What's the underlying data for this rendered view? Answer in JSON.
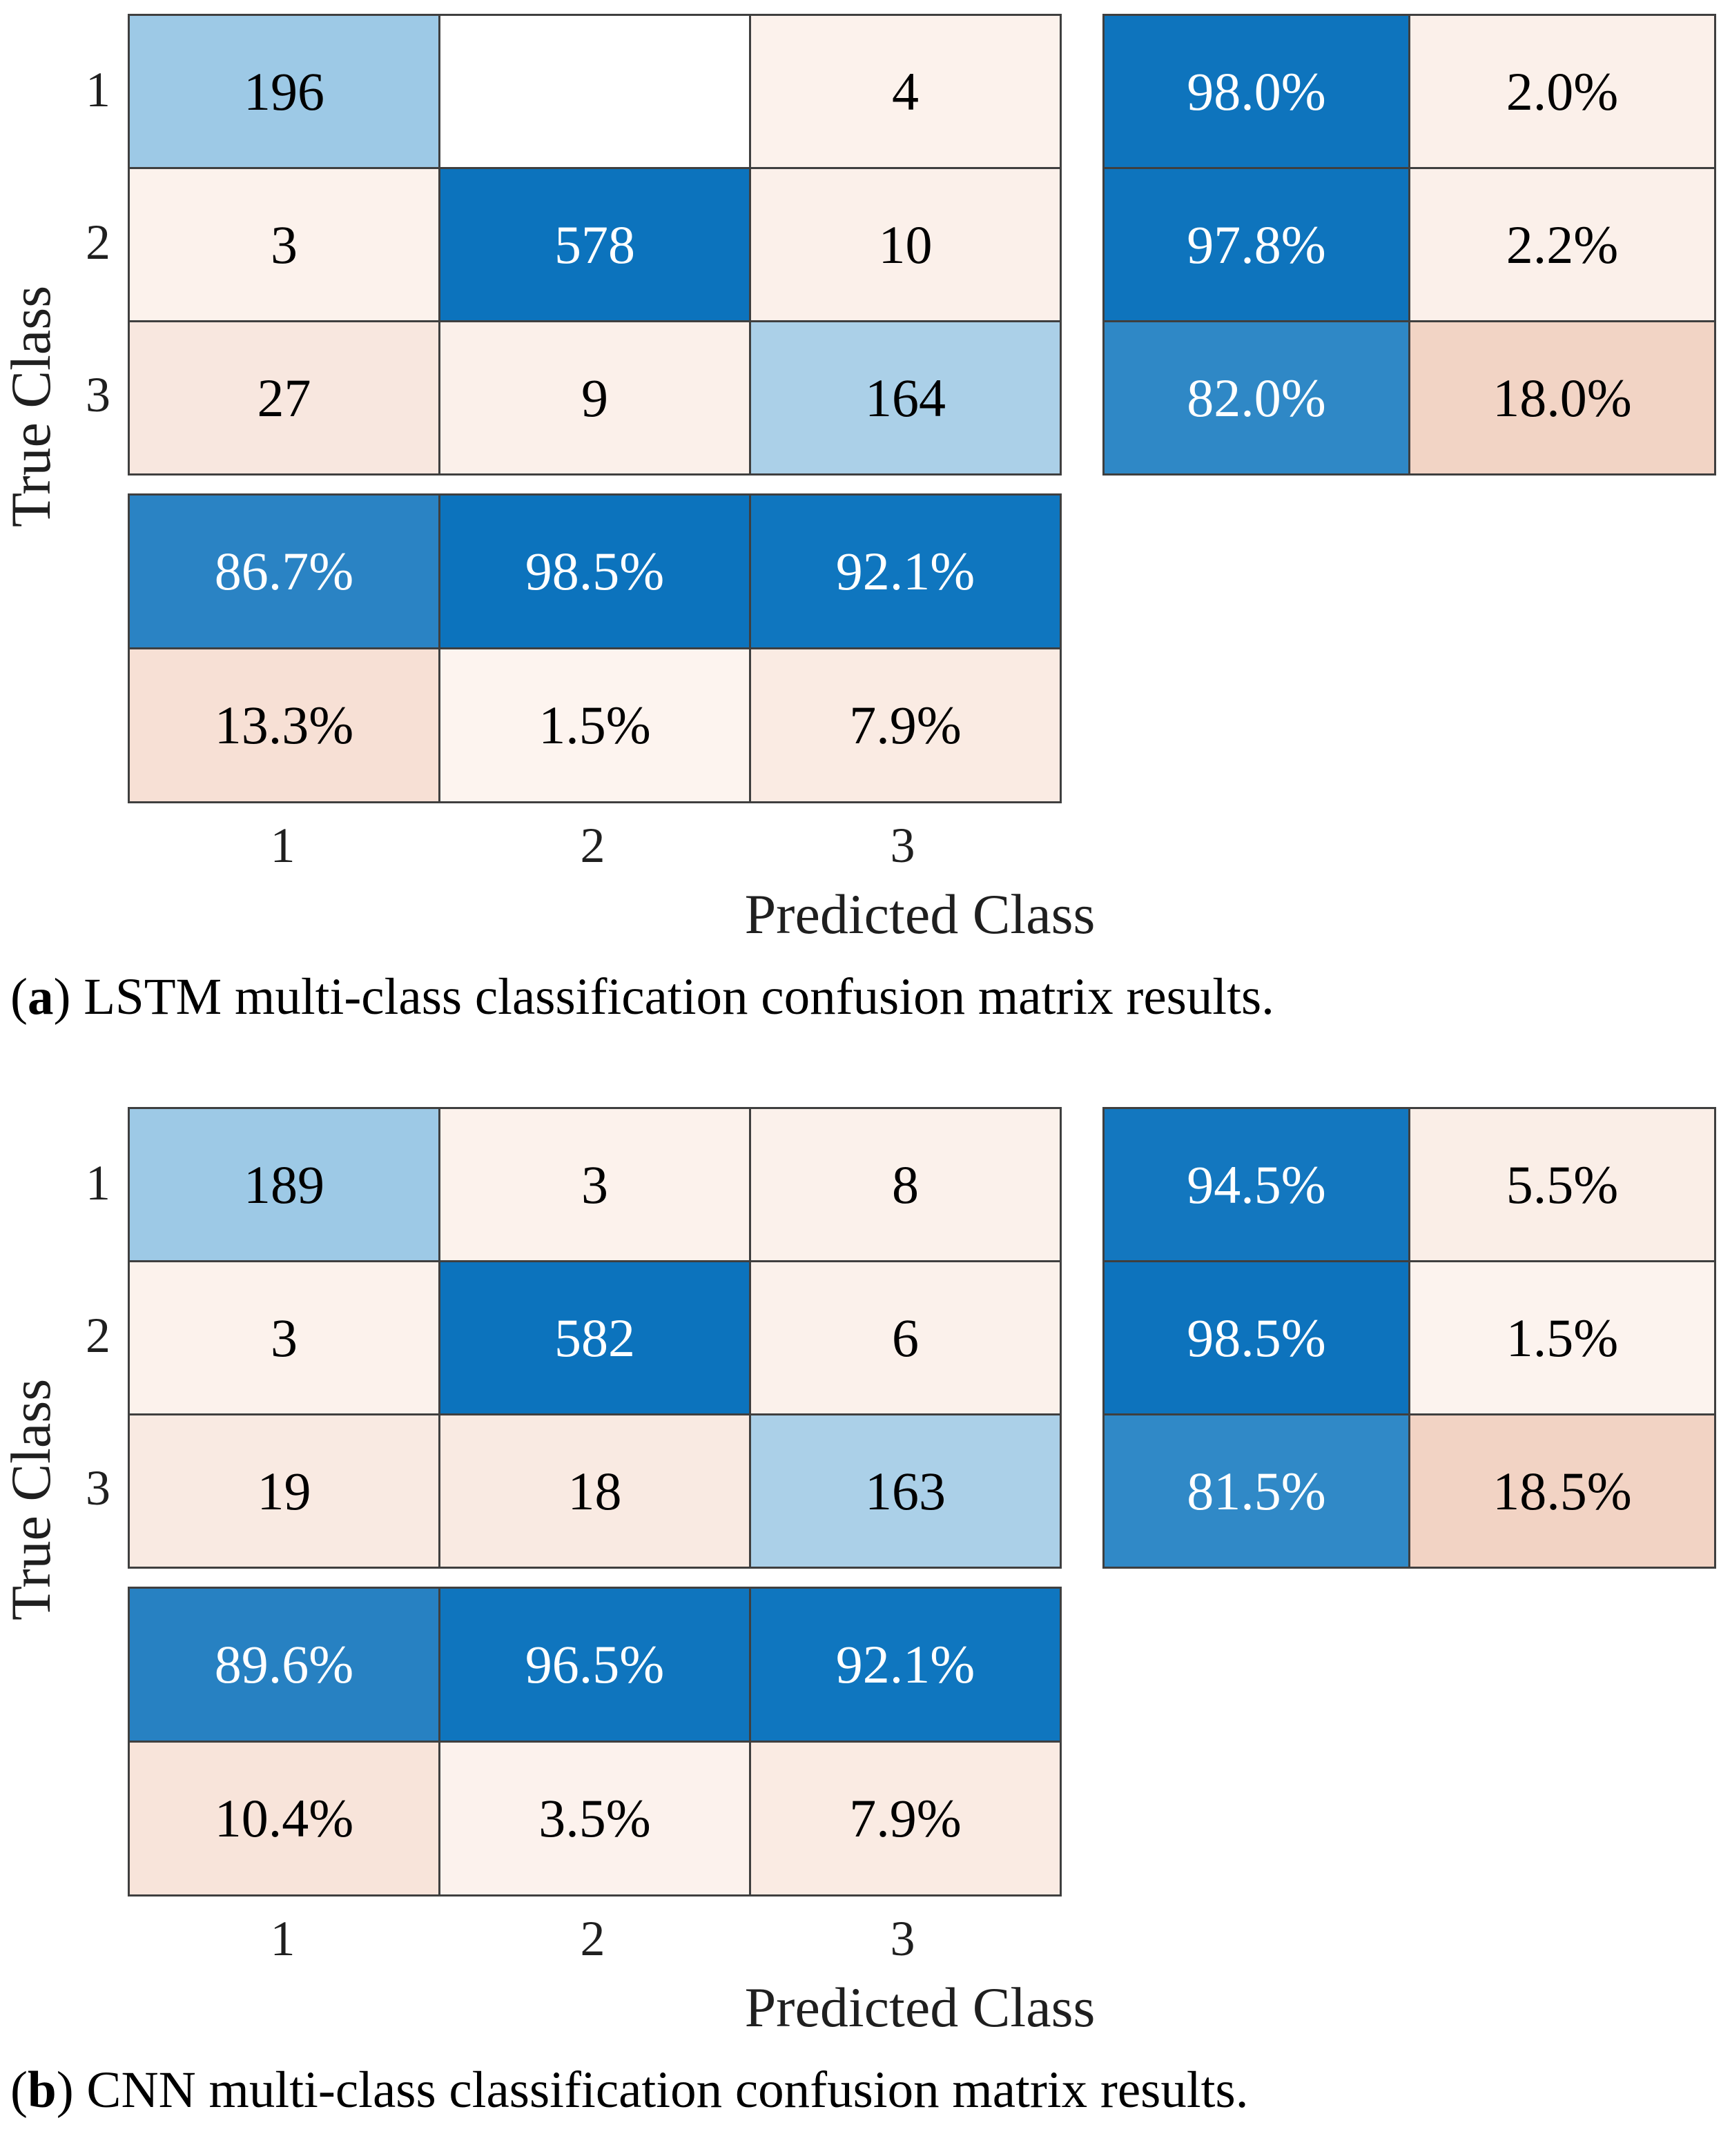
{
  "figures": [
    {
      "id": "a",
      "y_axis_label": "True Class",
      "x_axis_label": "Predicted Class",
      "row_ticks": [
        "1",
        "2",
        "3"
      ],
      "col_ticks": [
        "1",
        "2",
        "3"
      ],
      "caption": {
        "open": "(",
        "label": "a",
        "rest": ") LSTM multi-class classification confusion matrix results."
      },
      "matrix": [
        [
          {
            "t": "196",
            "bg": "#9DC9E6",
            "fg": "#000000"
          },
          {
            "t": "",
            "bg": "#FFFFFF",
            "fg": "#000000"
          },
          {
            "t": "4",
            "bg": "#FCF2EC",
            "fg": "#000000"
          }
        ],
        [
          {
            "t": "3",
            "bg": "#FCF2EC",
            "fg": "#000000"
          },
          {
            "t": "578",
            "bg": "#0C73BD",
            "fg": "#FFFFFF"
          },
          {
            "t": "10",
            "bg": "#FBF0EA",
            "fg": "#000000"
          }
        ],
        [
          {
            "t": "27",
            "bg": "#F8E7DF",
            "fg": "#000000"
          },
          {
            "t": "9",
            "bg": "#FBF0EA",
            "fg": "#000000"
          },
          {
            "t": "164",
            "bg": "#ABD0E8",
            "fg": "#000000"
          }
        ]
      ],
      "row_summary": [
        [
          {
            "t": "98.0%",
            "bg": "#0E74BD",
            "fg": "#FFFFFF"
          },
          {
            "t": "2.0%",
            "bg": "#FBF0EA",
            "fg": "#000000"
          }
        ],
        [
          {
            "t": "97.8%",
            "bg": "#0E74BD",
            "fg": "#FFFFFF"
          },
          {
            "t": "2.2%",
            "bg": "#FBF0EA",
            "fg": "#000000"
          }
        ],
        [
          {
            "t": "82.0%",
            "bg": "#2F88C6",
            "fg": "#FFFFFF"
          },
          {
            "t": "18.0%",
            "bg": "#F2D4C5",
            "fg": "#000000"
          }
        ]
      ],
      "col_summary": [
        [
          {
            "t": "86.7%",
            "bg": "#2A83C4",
            "fg": "#FFFFFF"
          },
          {
            "t": "98.5%",
            "bg": "#0C73BD",
            "fg": "#FFFFFF"
          },
          {
            "t": "92.1%",
            "bg": "#0F76BF",
            "fg": "#FFFFFF"
          }
        ],
        [
          {
            "t": "13.3%",
            "bg": "#F7E0D5",
            "fg": "#000000"
          },
          {
            "t": "1.5%",
            "bg": "#FDF4EF",
            "fg": "#000000"
          },
          {
            "t": "7.9%",
            "bg": "#FAEBE3",
            "fg": "#000000"
          }
        ]
      ]
    },
    {
      "id": "b",
      "y_axis_label": "True Class",
      "x_axis_label": "Predicted Class",
      "row_ticks": [
        "1",
        "2",
        "3"
      ],
      "col_ticks": [
        "1",
        "2",
        "3"
      ],
      "caption": {
        "open": "(",
        "label": "b",
        "rest": ") CNN multi-class classification confusion matrix results."
      },
      "matrix": [
        [
          {
            "t": "189",
            "bg": "#9DC9E6",
            "fg": "#000000"
          },
          {
            "t": "3",
            "bg": "#FCF2EC",
            "fg": "#000000"
          },
          {
            "t": "8",
            "bg": "#FBF1EB",
            "fg": "#000000"
          }
        ],
        [
          {
            "t": "3",
            "bg": "#FCF2EC",
            "fg": "#000000"
          },
          {
            "t": "582",
            "bg": "#0C73BD",
            "fg": "#FFFFFF"
          },
          {
            "t": "6",
            "bg": "#FBF1EB",
            "fg": "#000000"
          }
        ],
        [
          {
            "t": "19",
            "bg": "#F9EAE2",
            "fg": "#000000"
          },
          {
            "t": "18",
            "bg": "#F9EAE2",
            "fg": "#000000"
          },
          {
            "t": "163",
            "bg": "#ABD0E8",
            "fg": "#000000"
          }
        ]
      ],
      "row_summary": [
        [
          {
            "t": "94.5%",
            "bg": "#1377BF",
            "fg": "#FFFFFF"
          },
          {
            "t": "5.5%",
            "bg": "#FAEEE7",
            "fg": "#000000"
          }
        ],
        [
          {
            "t": "98.5%",
            "bg": "#0D73BD",
            "fg": "#FFFFFF"
          },
          {
            "t": "1.5%",
            "bg": "#FCF3EE",
            "fg": "#000000"
          }
        ],
        [
          {
            "t": "81.5%",
            "bg": "#3089C7",
            "fg": "#FFFFFF"
          },
          {
            "t": "18.5%",
            "bg": "#F2D3C4",
            "fg": "#000000"
          }
        ]
      ],
      "col_summary": [
        [
          {
            "t": "89.6%",
            "bg": "#2781C2",
            "fg": "#FFFFFF"
          },
          {
            "t": "96.5%",
            "bg": "#0F75BE",
            "fg": "#FFFFFF"
          },
          {
            "t": "92.1%",
            "bg": "#0F76BF",
            "fg": "#FFFFFF"
          }
        ],
        [
          {
            "t": "10.4%",
            "bg": "#F8E4DA",
            "fg": "#000000"
          },
          {
            "t": "3.5%",
            "bg": "#FCF2ED",
            "fg": "#000000"
          },
          {
            "t": "7.9%",
            "bg": "#FAEBE3",
            "fg": "#000000"
          }
        ]
      ]
    }
  ],
  "chart_data": [
    {
      "type": "heatmap",
      "title": "(a) LSTM multi-class classification confusion matrix results.",
      "xlabel": "Predicted Class",
      "ylabel": "True Class",
      "classes": [
        "1",
        "2",
        "3"
      ],
      "matrix_counts": [
        [
          196,
          0,
          4
        ],
        [
          3,
          578,
          10
        ],
        [
          27,
          9,
          164
        ]
      ],
      "blank_cells": [
        [
          0,
          1
        ]
      ],
      "row_summary_pct_correct": [
        98.0,
        97.8,
        82.0
      ],
      "row_summary_pct_incorrect": [
        2.0,
        2.2,
        18.0
      ],
      "col_summary_pct_correct": [
        86.7,
        98.5,
        92.1
      ],
      "col_summary_pct_incorrect": [
        13.3,
        1.5,
        7.9
      ],
      "colormap": "blue diagonal, salmon off-diagonal",
      "grid": true,
      "legend": false
    },
    {
      "type": "heatmap",
      "title": "(b) CNN multi-class classification confusion matrix results.",
      "xlabel": "Predicted Class",
      "ylabel": "True Class",
      "classes": [
        "1",
        "2",
        "3"
      ],
      "matrix_counts": [
        [
          189,
          3,
          8
        ],
        [
          3,
          582,
          6
        ],
        [
          19,
          18,
          163
        ]
      ],
      "blank_cells": [],
      "row_summary_pct_correct": [
        94.5,
        98.5,
        81.5
      ],
      "row_summary_pct_incorrect": [
        5.5,
        1.5,
        18.5
      ],
      "col_summary_pct_correct": [
        89.6,
        96.5,
        92.1
      ],
      "col_summary_pct_incorrect": [
        10.4,
        3.5,
        7.9
      ],
      "colormap": "blue diagonal, salmon off-diagonal",
      "grid": true,
      "legend": false
    }
  ]
}
